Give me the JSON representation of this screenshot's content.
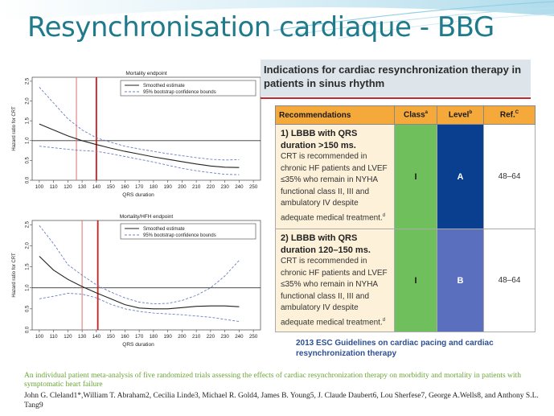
{
  "slide": {
    "title": "Resynchronisation cardiaque - BBG",
    "theme_color": "#1f7a8c"
  },
  "chart_data": [
    {
      "type": "line",
      "title": "Mortality endpoint",
      "xlabel": "QRS duration",
      "ylabel": "Hazard ratio for CRT",
      "xlim": [
        95,
        255
      ],
      "ylim": [
        0,
        2.6
      ],
      "xticks": [
        100,
        110,
        120,
        130,
        140,
        150,
        160,
        170,
        180,
        190,
        200,
        210,
        220,
        230,
        240,
        250
      ],
      "yticks": [
        "0.0",
        "0.5",
        "1.0",
        "1.5",
        "2.0",
        "2.5"
      ],
      "legend": [
        "Smoothed estimate",
        "95% bootstrap confidence bounds"
      ],
      "reference_line_y": 1.0,
      "vertical_lines": [
        {
          "x": 126,
          "color": "#e07a7a"
        },
        {
          "x": 140,
          "color": "#d01c1c"
        }
      ],
      "x": [
        100,
        110,
        120,
        130,
        140,
        150,
        160,
        170,
        180,
        190,
        200,
        210,
        220,
        230,
        240
      ],
      "series": [
        {
          "name": "Smoothed estimate",
          "style": "solid",
          "values": [
            1.42,
            1.27,
            1.12,
            1.0,
            0.9,
            0.81,
            0.73,
            0.66,
            0.59,
            0.53,
            0.47,
            0.41,
            0.36,
            0.33,
            0.32
          ]
        },
        {
          "name": "95% bootstrap confidence bounds",
          "style": "dashed",
          "values": [
            2.35,
            1.95,
            1.55,
            1.27,
            1.07,
            0.96,
            0.86,
            0.79,
            0.73,
            0.67,
            0.62,
            0.57,
            0.53,
            0.51,
            0.52
          ]
        },
        {
          "name": "",
          "style": "dashed",
          "values": [
            0.86,
            0.82,
            0.78,
            0.75,
            0.73,
            0.67,
            0.6,
            0.53,
            0.46,
            0.38,
            0.3,
            0.24,
            0.19,
            0.15,
            0.14
          ]
        }
      ]
    },
    {
      "type": "line",
      "title": "Mortality/HFH endpoint",
      "xlabel": "QRS duration",
      "ylabel": "Hazard ratio for CRT",
      "xlim": [
        95,
        255
      ],
      "ylim": [
        0,
        2.6
      ],
      "xticks": [
        100,
        110,
        120,
        130,
        140,
        150,
        160,
        170,
        180,
        190,
        200,
        210,
        220,
        230,
        240,
        250
      ],
      "yticks": [
        "0.0",
        "0.5",
        "1.0",
        "1.5",
        "2.0",
        "2.5"
      ],
      "legend": [
        "Smoothed estimate",
        "95% bootstrap confidence bounds"
      ],
      "reference_line_y": 1.0,
      "vertical_lines": [
        {
          "x": 130,
          "color": "#e07a7a"
        },
        {
          "x": 141,
          "color": "#d01c1c"
        }
      ],
      "x": [
        100,
        110,
        120,
        130,
        140,
        150,
        160,
        170,
        180,
        190,
        200,
        210,
        220,
        230,
        240
      ],
      "series": [
        {
          "name": "Smoothed estimate",
          "style": "solid",
          "values": [
            1.75,
            1.42,
            1.2,
            1.03,
            0.88,
            0.74,
            0.6,
            0.52,
            0.5,
            0.5,
            0.53,
            0.56,
            0.57,
            0.57,
            0.55
          ]
        },
        {
          "name": "95% bootstrap confidence bounds",
          "style": "dashed",
          "values": [
            2.48,
            2.05,
            1.55,
            1.3,
            1.07,
            0.9,
            0.76,
            0.66,
            0.62,
            0.63,
            0.7,
            0.82,
            1.0,
            1.28,
            1.65
          ]
        },
        {
          "name": "",
          "style": "dashed",
          "values": [
            0.74,
            0.8,
            0.87,
            0.85,
            0.76,
            0.61,
            0.5,
            0.44,
            0.4,
            0.38,
            0.36,
            0.33,
            0.3,
            0.25,
            0.2
          ]
        }
      ]
    }
  ],
  "guideline": {
    "header": "Indications for cardiac resynchronization therapy in patients in sinus rhythm",
    "columns": {
      "recommendations": "Recommendations",
      "class": "Class",
      "class_sup": "a",
      "level": "Level",
      "level_sup": "b",
      "ref": "Ref.",
      "ref_sup": "C"
    },
    "rows": [
      {
        "heading": "1) LBBB with QRS duration >150 ms.",
        "text": "CRT is recommended in chronic HF patients and LVEF ≤35% who remain in NYHA functional class II, III and ambulatory IV despite adequate medical treatment.",
        "note": "d",
        "class": "I",
        "level": "A",
        "ref": "48–64"
      },
      {
        "heading": "2) LBBB with QRS duration 120–150 ms.",
        "text": "CRT is recommended in chronic HF patients and LVEF ≤35% who remain in NYHA functional class II, III and ambulatory IV despite adequate medical treatment.",
        "note": "d",
        "class": "I",
        "level": "B",
        "ref": "48–64"
      }
    ],
    "colors": {
      "header": "#f6a93b",
      "class": "#6fbf5c",
      "level_a": "#0a3e8f",
      "level_b": "#5a6fbd",
      "row_bg": "#fdf1d9"
    },
    "caption": "2013 ESC Guidelines on cardiac pacing and cardiac resynchronization therapy"
  },
  "footer": {
    "study": "An individual patient meta-analysis of five randomized trials assessing the effects of cardiac resynchronization therapy on morbidity and mortality in patients with symptomatic heart failure",
    "authors": "John G. Cleland1*,William T. Abraham2, Cecilia Linde3, Michael R. Gold4, James B. Young5, J. Claude Daubert6, Lou Sherfese7, George A.Wells8, and Anthony S.L. Tang9"
  }
}
